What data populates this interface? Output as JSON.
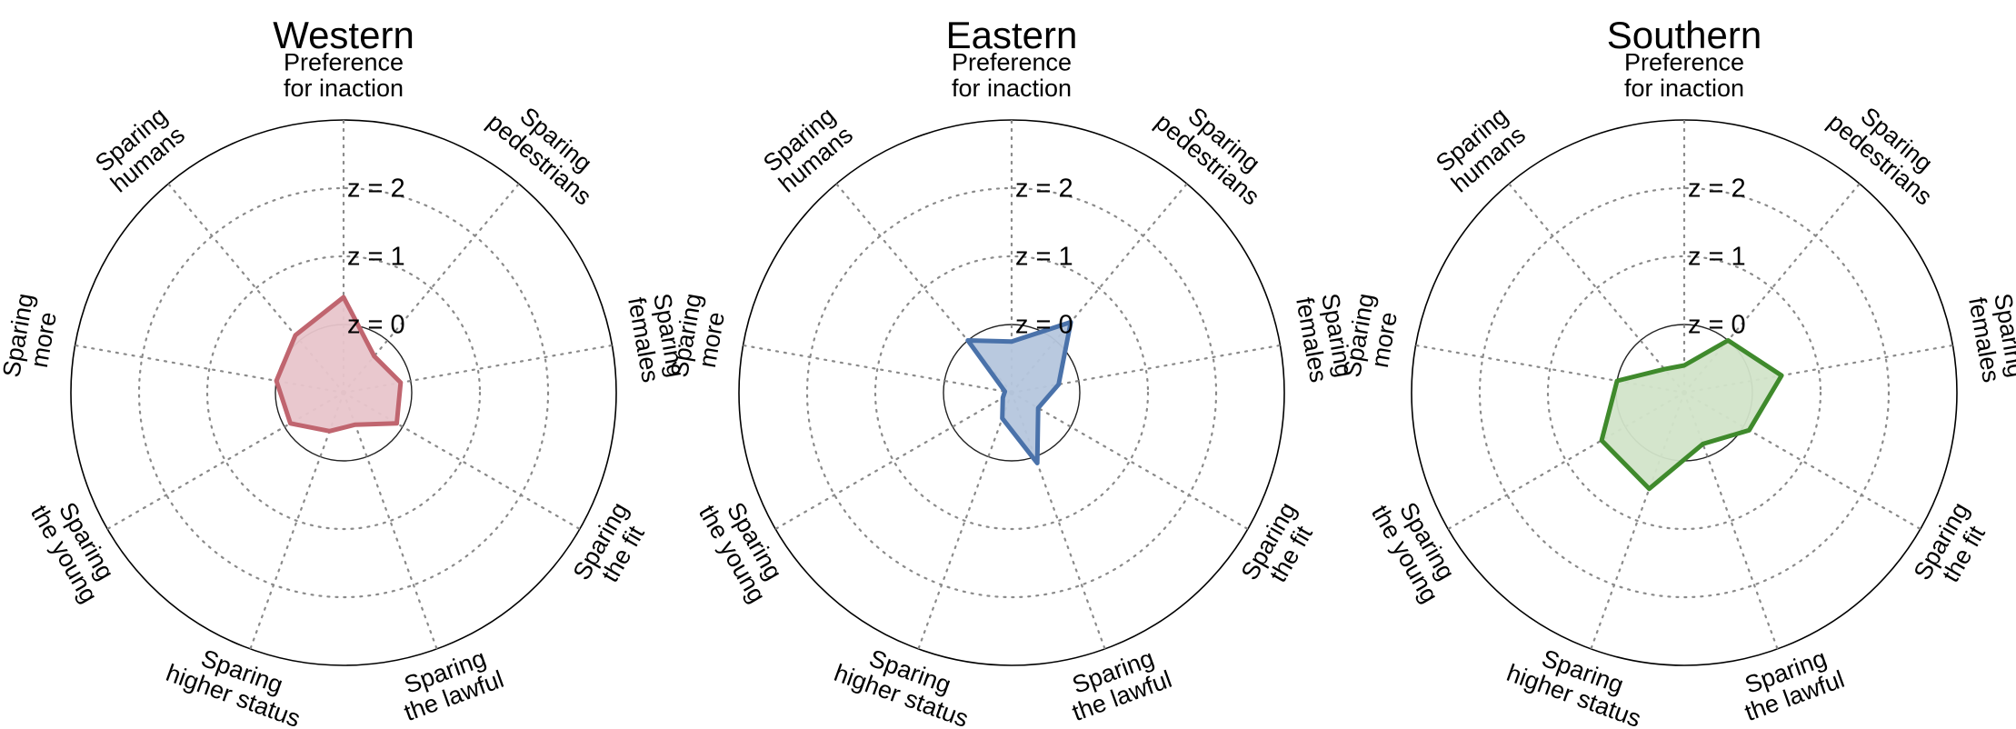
{
  "chart_data": [
    {
      "type": "radar",
      "title": "Western",
      "color": "#c0656f",
      "fill": "#e8c5cb",
      "axes": [
        "Preference for inaction",
        "Sparing pedestrians",
        "Sparing females",
        "Sparing the fit",
        "Sparing the lawful",
        "Sparing higher status",
        "Sparing the young",
        "Sparing more",
        "Sparing humans"
      ],
      "ring_labels": [
        "z = 0",
        "z = 1",
        "z = 2"
      ],
      "rlim": [
        -1,
        3
      ],
      "values": [
        0.4,
        -0.3,
        -0.15,
        -0.1,
        -0.5,
        -0.4,
        -0.1,
        0.0,
        0.1
      ]
    },
    {
      "type": "radar",
      "title": "Eastern",
      "color": "#4a72aa",
      "fill": "#b5c6dd",
      "axes": [
        "Preference for inaction",
        "Sparing pedestrians",
        "Sparing females",
        "Sparing the fit",
        "Sparing the lawful",
        "Sparing higher status",
        "Sparing the young",
        "Sparing more",
        "Sparing humans"
      ],
      "ring_labels": [
        "z = 0",
        "z = 1",
        "z = 2"
      ],
      "rlim": [
        -1,
        3
      ],
      "values": [
        -0.25,
        0.35,
        -0.3,
        -0.55,
        0.1,
        -0.6,
        -0.85,
        -0.9,
        0.0
      ]
    },
    {
      "type": "radar",
      "title": "Southern",
      "color": "#3f8a2c",
      "fill": "#d2e4c9",
      "axes": [
        "Preference for inaction",
        "Sparing pedestrians",
        "Sparing females",
        "Sparing the fit",
        "Sparing the lawful",
        "Sparing higher status",
        "Sparing the young",
        "Sparing more",
        "Sparing humans"
      ],
      "ring_labels": [
        "z = 0",
        "z = 1",
        "z = 2"
      ],
      "rlim": [
        -1,
        3
      ],
      "values": [
        -0.6,
        0.0,
        0.45,
        0.1,
        -0.2,
        0.5,
        0.4,
        0.0,
        -0.55
      ]
    }
  ]
}
